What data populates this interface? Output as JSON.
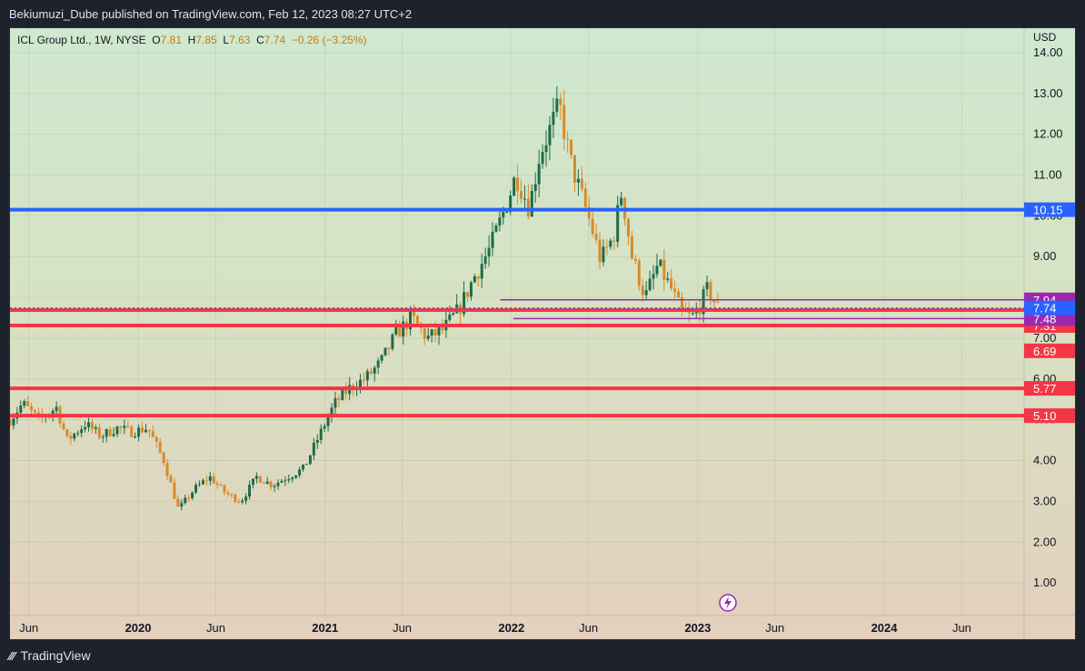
{
  "header": {
    "published": "Bekiumuzi_Dube published on TradingView.com, Feb 12, 2023 08:27 UTC+2"
  },
  "legend": {
    "symbol": "ICL Group Ltd., 1W, NYSE",
    "o_label": "O",
    "o": "7.81",
    "h_label": "H",
    "h": "7.85",
    "l_label": "L",
    "l": "7.63",
    "c_label": "C",
    "c": "7.74",
    "change": "−0.26 (−3.25%)"
  },
  "footer": {
    "brand": "TradingView"
  },
  "colors": {
    "up": "#1f6b4a",
    "down": "#d98a2b",
    "blue_line": "#2962ff",
    "red_line": "#f23645",
    "purple_line": "#9c27b0",
    "axis_text": "#131722"
  },
  "chart_data": {
    "type": "candlestick",
    "symbol": "ICL Group Ltd.",
    "interval": "1W",
    "currency": "USD",
    "y_axis": {
      "unit_label": "USD",
      "ticks": [
        1,
        2,
        3,
        4,
        5,
        6,
        7,
        8,
        9,
        10,
        11,
        12,
        13,
        14
      ],
      "tick_labels": [
        "1.00",
        "2.00",
        "3.00",
        "4.00",
        "5.00",
        "6.00",
        "7.00",
        "8.00",
        "9.00",
        "10.00",
        "11.00",
        "12.00",
        "13.00",
        "14.00"
      ],
      "range": [
        0.2,
        14.6
      ]
    },
    "x_axis": {
      "range": [
        "2019-04-25",
        "2024-10-01"
      ],
      "ticks": [
        {
          "date": "2019-06-01",
          "label": "Jun"
        },
        {
          "date": "2020-01-01",
          "label": "2020"
        },
        {
          "date": "2020-06-01",
          "label": "Jun"
        },
        {
          "date": "2021-01-01",
          "label": "2021"
        },
        {
          "date": "2021-06-01",
          "label": "Jun"
        },
        {
          "date": "2022-01-01",
          "label": "2022"
        },
        {
          "date": "2022-06-01",
          "label": "Jun"
        },
        {
          "date": "2023-01-01",
          "label": "2023"
        },
        {
          "date": "2023-06-01",
          "label": "Jun"
        },
        {
          "date": "2024-01-01",
          "label": "2024"
        },
        {
          "date": "2024-06-01",
          "label": "Jun"
        }
      ]
    },
    "price_path": [
      [
        "2019-04-25",
        5.0
      ],
      [
        "2019-05-20",
        5.4
      ],
      [
        "2019-06-20",
        5.0
      ],
      [
        "2019-07-25",
        5.3
      ],
      [
        "2019-08-15",
        4.5
      ],
      [
        "2019-09-20",
        4.9
      ],
      [
        "2019-10-20",
        4.6
      ],
      [
        "2019-11-20",
        4.8
      ],
      [
        "2019-12-20",
        4.7
      ],
      [
        "2020-01-20",
        4.8
      ],
      [
        "2020-02-20",
        4.0
      ],
      [
        "2020-03-20",
        2.8
      ],
      [
        "2020-04-20",
        3.3
      ],
      [
        "2020-05-20",
        3.6
      ],
      [
        "2020-06-20",
        3.2
      ],
      [
        "2020-07-20",
        3.0
      ],
      [
        "2020-08-20",
        3.6
      ],
      [
        "2020-09-20",
        3.4
      ],
      [
        "2020-10-20",
        3.6
      ],
      [
        "2020-11-20",
        3.8
      ],
      [
        "2020-12-20",
        4.6
      ],
      [
        "2021-01-20",
        5.4
      ],
      [
        "2021-02-20",
        5.8
      ],
      [
        "2021-03-20",
        6.0
      ],
      [
        "2021-04-20",
        6.4
      ],
      [
        "2021-05-20",
        7.1
      ],
      [
        "2021-06-20",
        7.5
      ],
      [
        "2021-07-20",
        7.0
      ],
      [
        "2021-08-20",
        7.2
      ],
      [
        "2021-09-20",
        7.7
      ],
      [
        "2021-10-20",
        8.5
      ],
      [
        "2021-11-20",
        9.2
      ],
      [
        "2021-12-20",
        10.2
      ],
      [
        "2022-01-10",
        11.0
      ],
      [
        "2022-02-05",
        10.2
      ],
      [
        "2022-02-25",
        11.5
      ],
      [
        "2022-03-20",
        12.2
      ],
      [
        "2022-04-05",
        12.7
      ],
      [
        "2022-04-25",
        11.4
      ],
      [
        "2022-05-15",
        10.6
      ],
      [
        "2022-06-05",
        9.8
      ],
      [
        "2022-06-25",
        8.9
      ],
      [
        "2022-07-20",
        9.5
      ],
      [
        "2022-08-05",
        10.6
      ],
      [
        "2022-08-25",
        9.0
      ],
      [
        "2022-09-20",
        8.0
      ],
      [
        "2022-10-15",
        8.8
      ],
      [
        "2022-11-10",
        8.2
      ],
      [
        "2022-12-01",
        7.6
      ],
      [
        "2022-12-20",
        7.5
      ],
      [
        "2023-01-05",
        7.8
      ],
      [
        "2023-01-20",
        8.2
      ],
      [
        "2023-02-10",
        7.74
      ]
    ],
    "horizontal_levels": [
      {
        "price": 10.15,
        "label": "10.15",
        "color": "#2962ff"
      },
      {
        "price": 7.69,
        "label": "7.69",
        "color": "#f23645"
      },
      {
        "price": 7.31,
        "label": "7.31",
        "color": "#f23645"
      },
      {
        "price": 5.77,
        "label": "5.77",
        "color": "#f23645"
      },
      {
        "price": 5.1,
        "label": "5.10",
        "color": "#f23645"
      },
      {
        "price": 7.94,
        "label": "7.94",
        "color": "#9c27b0",
        "from": "2021-12-10"
      },
      {
        "price": 7.48,
        "label": "7.48",
        "color": "#9c27b0",
        "from": "2022-01-05"
      },
      {
        "price": 6.69,
        "label": "6.69",
        "color": "#f23645",
        "label_only": true
      }
    ],
    "last_price": {
      "price": 7.74,
      "label": "7.74",
      "color": "#2962ff"
    }
  }
}
